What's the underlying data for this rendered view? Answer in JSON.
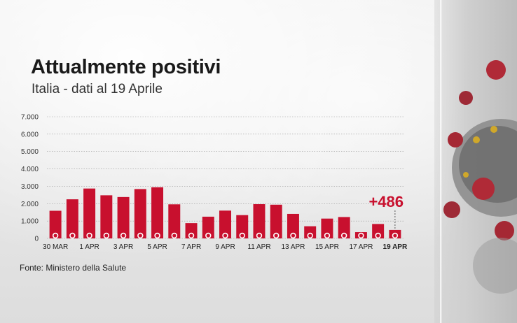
{
  "header": {
    "title": "Attualmente positivi",
    "subtitle": "Italia - dati al 19 Aprile"
  },
  "footer": {
    "source": "Fonte: Ministero della Salute"
  },
  "colors": {
    "bar": "#c8102e",
    "grid": "#9a9a9a",
    "text": "#1a1a1a"
  },
  "chart_data": {
    "type": "bar",
    "title": "Attualmente positivi",
    "subtitle": "Italia - dati al 19 Aprile",
    "categories": [
      "30 MAR",
      "31 MAR",
      "1 APR",
      "2 APR",
      "3 APR",
      "4 APR",
      "5 APR",
      "6 APR",
      "7 APR",
      "8 APR",
      "9 APR",
      "10 APR",
      "11 APR",
      "12 APR",
      "13 APR",
      "14 APR",
      "15 APR",
      "16 APR",
      "17 APR",
      "18 APR",
      "19 APR"
    ],
    "values": [
      1590,
      2250,
      2870,
      2480,
      2380,
      2840,
      2940,
      1960,
      880,
      1250,
      1600,
      1340,
      1970,
      1940,
      1410,
      700,
      1140,
      1230,
      360,
      830,
      486
    ],
    "x_tick_labels": [
      "30 MAR",
      "1 APR",
      "3 APR",
      "5 APR",
      "7 APR",
      "9 APR",
      "11 APR",
      "13 APR",
      "15 APR",
      "17 APR",
      "19 APR"
    ],
    "highlighted_tick": "19 APR",
    "y_ticks": [
      "0",
      "1.000",
      "2.000",
      "3.000",
      "4.000",
      "5.000",
      "6.000",
      "7.000"
    ],
    "ylim": [
      0,
      7000
    ],
    "grid": true,
    "annotation": "+486",
    "xlabel": "",
    "ylabel": ""
  }
}
